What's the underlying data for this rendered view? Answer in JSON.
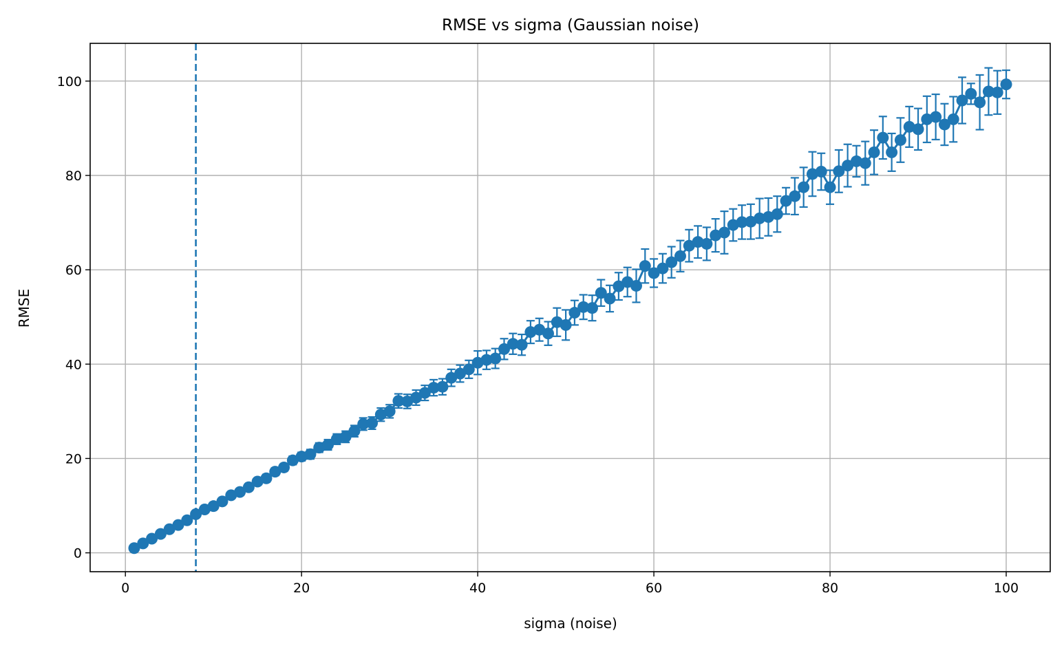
{
  "chart_data": {
    "type": "scatter",
    "title": "RMSE vs sigma (Gaussian noise)",
    "xlabel": "sigma (noise)",
    "ylabel": "RMSE",
    "xlim": [
      -4,
      105
    ],
    "ylim": [
      -4,
      108
    ],
    "xticks": [
      0,
      20,
      40,
      60,
      80,
      100
    ],
    "yticks": [
      0,
      20,
      40,
      60,
      80,
      100
    ],
    "grid": true,
    "legend": "none",
    "colors": {
      "series": "#1f77b4",
      "grid": "#b0b0b0",
      "axes": "#000000"
    },
    "reference_line": {
      "orientation": "vertical",
      "x": 8,
      "style": "dashed"
    },
    "series": [
      {
        "x": [
          1,
          2,
          3,
          4,
          5,
          6,
          7,
          8,
          9,
          10,
          11,
          12,
          13,
          14,
          15,
          16,
          17,
          18,
          19,
          20,
          21,
          22,
          23,
          24,
          25,
          26,
          27,
          28,
          29,
          30,
          31,
          32,
          33,
          34,
          35,
          36,
          37,
          38,
          39,
          40,
          41,
          42,
          43,
          44,
          45,
          46,
          47,
          48,
          49,
          50,
          51,
          52,
          53,
          54,
          55,
          56,
          57,
          58,
          59,
          60,
          61,
          62,
          63,
          64,
          65,
          66,
          67,
          68,
          69,
          70,
          71,
          72,
          73,
          74,
          75,
          76,
          77,
          78,
          79,
          80,
          81,
          82,
          83,
          84,
          85,
          86,
          87,
          88,
          89,
          90,
          91,
          92,
          93,
          94,
          95,
          96,
          97,
          98,
          99,
          100
        ],
        "y": [
          1.0,
          2.0,
          3.0,
          4.0,
          5.0,
          5.9,
          6.9,
          8.2,
          9.2,
          9.9,
          10.9,
          12.2,
          12.9,
          13.9,
          15.1,
          15.8,
          17.2,
          18.1,
          19.6,
          20.4,
          20.9,
          22.3,
          22.9,
          24.1,
          24.6,
          25.8,
          27.3,
          27.5,
          29.3,
          30.0,
          32.2,
          32.1,
          32.9,
          33.9,
          35.0,
          35.2,
          37.1,
          38.0,
          38.9,
          40.3,
          40.9,
          41.2,
          43.2,
          44.3,
          44.1,
          46.8,
          47.3,
          46.5,
          48.9,
          48.3,
          50.9,
          52.1,
          51.9,
          55.1,
          53.9,
          56.5,
          57.4,
          56.6,
          60.8,
          59.3,
          60.3,
          61.6,
          62.9,
          65.1,
          65.9,
          65.5,
          67.3,
          67.9,
          69.5,
          70.1,
          70.2,
          70.9,
          71.2,
          71.8,
          74.6,
          75.6,
          77.5,
          80.3,
          80.8,
          77.5,
          80.9,
          82.1,
          83.0,
          82.6,
          84.9,
          88.0,
          84.9,
          87.5,
          90.3,
          89.8,
          91.9,
          92.4,
          90.8,
          91.9,
          95.9,
          97.3,
          95.5,
          97.8,
          97.6,
          99.3
        ],
        "err": [
          0.1,
          0.1,
          0.2,
          0.2,
          0.3,
          0.3,
          0.4,
          0.4,
          0.5,
          0.5,
          0.5,
          0.6,
          0.6,
          0.7,
          0.7,
          0.8,
          0.8,
          0.8,
          0.9,
          0.9,
          1.0,
          1.0,
          1.1,
          1.1,
          1.2,
          1.2,
          1.3,
          1.3,
          1.4,
          1.4,
          1.5,
          1.5,
          1.6,
          1.6,
          1.7,
          1.7,
          1.8,
          1.8,
          1.9,
          2.5,
          2.0,
          2.1,
          2.2,
          2.2,
          2.2,
          2.4,
          2.4,
          2.5,
          3.0,
          3.2,
          2.6,
          2.6,
          2.7,
          2.8,
          2.8,
          2.9,
          3.1,
          3.5,
          3.6,
          3.0,
          3.1,
          3.3,
          3.3,
          3.4,
          3.4,
          3.5,
          3.5,
          4.5,
          3.4,
          3.6,
          3.7,
          4.2,
          4.0,
          3.8,
          2.8,
          3.9,
          4.2,
          4.7,
          3.9,
          3.6,
          4.5,
          4.5,
          3.3,
          4.6,
          4.7,
          4.5,
          4.0,
          4.7,
          4.3,
          4.4,
          4.9,
          4.8,
          4.4,
          4.8,
          4.9,
          2.2,
          5.8,
          5.0,
          4.6,
          3.0
        ]
      }
    ]
  }
}
